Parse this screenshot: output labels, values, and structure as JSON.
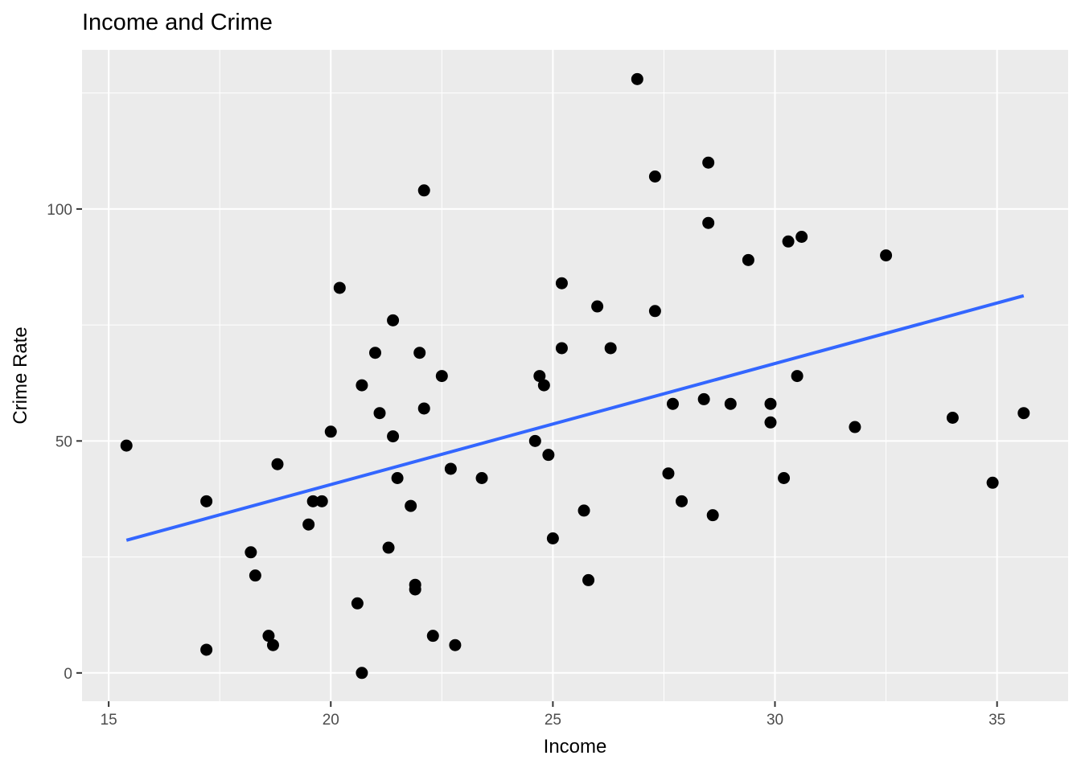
{
  "chart_data": {
    "type": "scatter",
    "title": "Income and Crime",
    "xlabel": "Income",
    "ylabel": "Crime Rate",
    "xlim": [
      14.4,
      36.6
    ],
    "ylim": [
      -6.1,
      134.3
    ],
    "x_ticks": [
      15,
      20,
      25,
      30,
      35
    ],
    "y_ticks": [
      0,
      50,
      100
    ],
    "grid": true,
    "legend": null,
    "point_color": "#000000",
    "panel_background": "#EBEBEB",
    "grid_color": "#FFFFFF",
    "series": [
      {
        "name": "observations",
        "points": [
          [
            15.4,
            49
          ],
          [
            17.2,
            37
          ],
          [
            17.2,
            5
          ],
          [
            18.2,
            26
          ],
          [
            18.3,
            21
          ],
          [
            18.6,
            8
          ],
          [
            18.7,
            6
          ],
          [
            18.8,
            45
          ],
          [
            19.5,
            32
          ],
          [
            19.6,
            37
          ],
          [
            19.8,
            37
          ],
          [
            20.0,
            52
          ],
          [
            20.2,
            83
          ],
          [
            20.6,
            15
          ],
          [
            20.7,
            0
          ],
          [
            20.7,
            62
          ],
          [
            21.0,
            69
          ],
          [
            21.1,
            56
          ],
          [
            21.3,
            27
          ],
          [
            21.4,
            76
          ],
          [
            21.4,
            51
          ],
          [
            21.5,
            42
          ],
          [
            21.8,
            36
          ],
          [
            21.9,
            19
          ],
          [
            21.9,
            18
          ],
          [
            22.0,
            69
          ],
          [
            22.1,
            104
          ],
          [
            22.1,
            57
          ],
          [
            22.3,
            8
          ],
          [
            22.5,
            64
          ],
          [
            22.7,
            44
          ],
          [
            22.8,
            6
          ],
          [
            23.4,
            42
          ],
          [
            24.6,
            50
          ],
          [
            24.7,
            64
          ],
          [
            24.8,
            62
          ],
          [
            24.9,
            47
          ],
          [
            25.0,
            29
          ],
          [
            25.2,
            84
          ],
          [
            25.2,
            70
          ],
          [
            25.7,
            35
          ],
          [
            25.8,
            20
          ],
          [
            26.0,
            79
          ],
          [
            26.3,
            70
          ],
          [
            26.9,
            128
          ],
          [
            27.3,
            107
          ],
          [
            27.3,
            78
          ],
          [
            27.6,
            43
          ],
          [
            27.7,
            58
          ],
          [
            27.9,
            37
          ],
          [
            28.4,
            59
          ],
          [
            28.5,
            110
          ],
          [
            28.5,
            97
          ],
          [
            28.6,
            34
          ],
          [
            29.0,
            58
          ],
          [
            29.4,
            89
          ],
          [
            29.9,
            58
          ],
          [
            29.9,
            54
          ],
          [
            30.2,
            42
          ],
          [
            30.3,
            93
          ],
          [
            30.5,
            64
          ],
          [
            30.6,
            94
          ],
          [
            31.8,
            53
          ],
          [
            32.5,
            90
          ],
          [
            34.0,
            55
          ],
          [
            34.9,
            41
          ],
          [
            35.6,
            56
          ]
        ]
      },
      {
        "name": "linear fit",
        "type": "line",
        "color": "#3366FF",
        "points": [
          [
            15.4,
            28.6
          ],
          [
            35.6,
            81.3
          ]
        ]
      }
    ]
  }
}
